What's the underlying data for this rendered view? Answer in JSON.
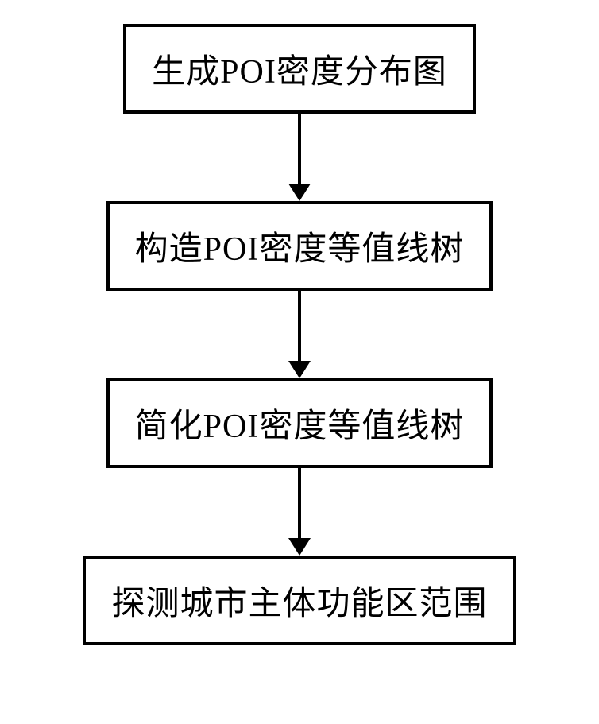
{
  "flowchart": {
    "type": "flowchart",
    "direction": "vertical",
    "background_color": "#ffffff",
    "box_border_color": "#000000",
    "box_border_width": 4,
    "box_background_color": "#ffffff",
    "text_color": "#000000",
    "font_size": 42,
    "font_family": "SimSun",
    "arrow_color": "#000000",
    "arrow_line_width": 4,
    "nodes": [
      {
        "id": "node1",
        "label": "生成POI密度分布图"
      },
      {
        "id": "node2",
        "label": "构造POI密度等值线树"
      },
      {
        "id": "node3",
        "label": "简化POI密度等值线树"
      },
      {
        "id": "node4",
        "label": "探测城市主体功能区范围"
      }
    ],
    "edges": [
      {
        "from": "node1",
        "to": "node2"
      },
      {
        "from": "node2",
        "to": "node3"
      },
      {
        "from": "node3",
        "to": "node4"
      }
    ]
  }
}
